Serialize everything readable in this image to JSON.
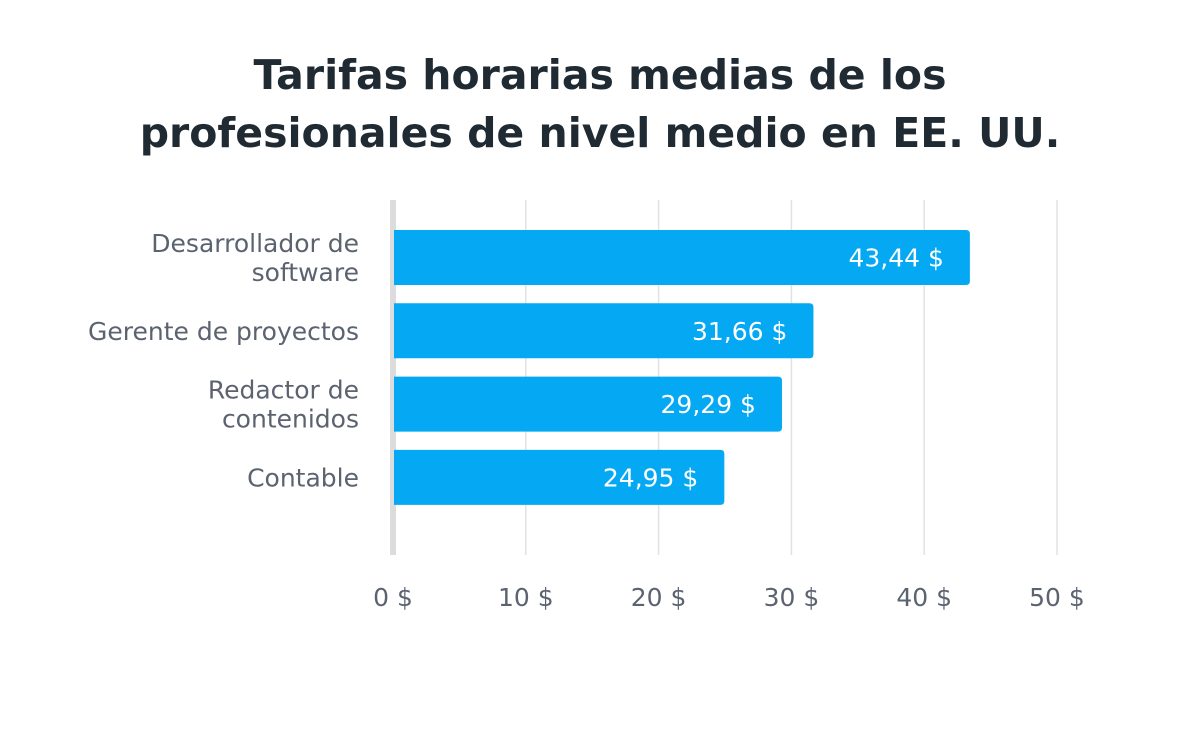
{
  "chart_data": {
    "type": "bar",
    "orientation": "horizontal",
    "title_lines": [
      "Tarifas horarias medias de los",
      "profesionales de nivel medio en EE. UU."
    ],
    "categories": [
      [
        "Desarrollador de",
        "software"
      ],
      [
        "Gerente de proyectos"
      ],
      [
        "Redactor de",
        "contenidos"
      ],
      [
        "Contable"
      ]
    ],
    "values": [
      43.44,
      31.66,
      29.29,
      24.95
    ],
    "value_labels": [
      "43,44 $",
      "31,66 $",
      "29,29 $",
      "24,95 $"
    ],
    "x_ticks": [
      0,
      10,
      20,
      30,
      40,
      50
    ],
    "x_tick_labels": [
      "0 $",
      "10 $",
      "20 $",
      "30 $",
      "40 $",
      "50 $"
    ],
    "xlim": [
      0,
      50
    ],
    "grid": true,
    "bar_color": "#05a8f2",
    "grid_color": "#e2e2e2",
    "axis_color": "#dcdcdc"
  }
}
